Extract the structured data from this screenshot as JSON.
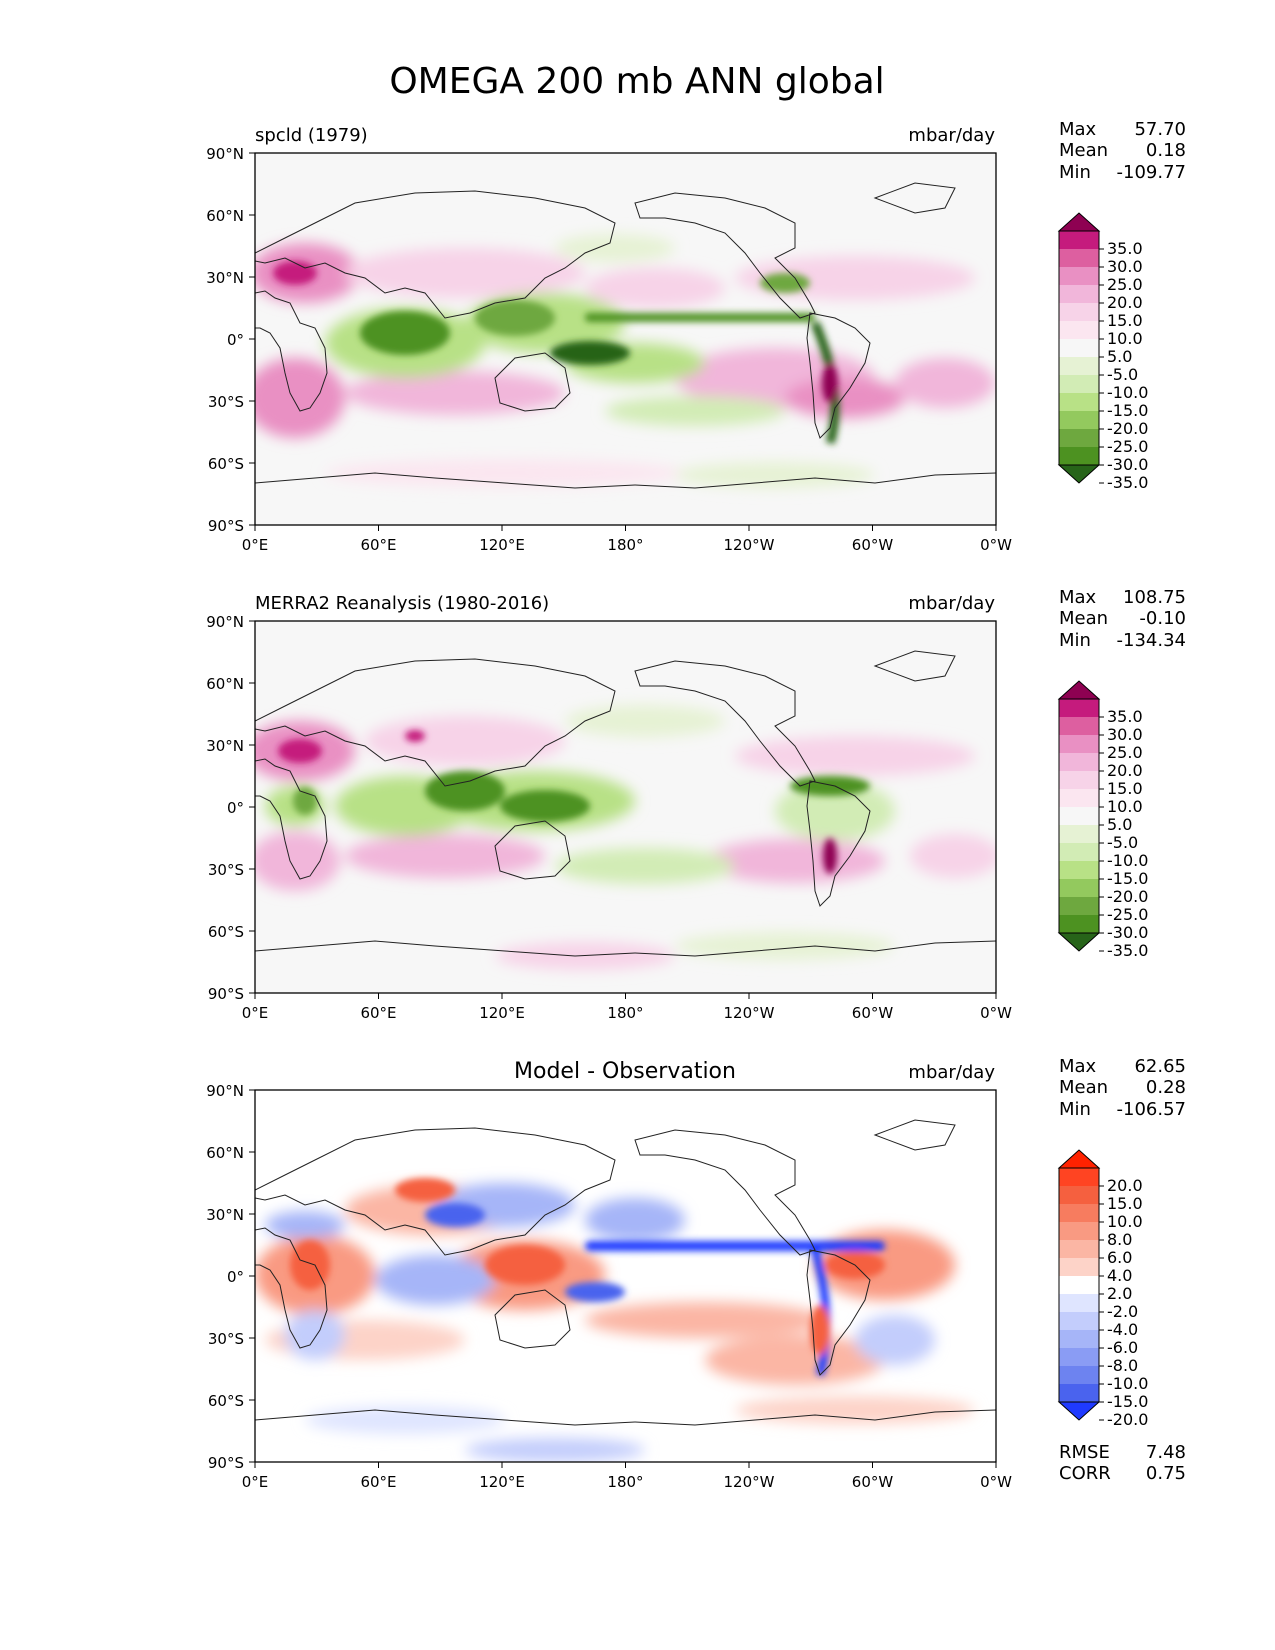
{
  "figure": {
    "title": "OMEGA 200 mb ANN global"
  },
  "chart_data": [
    {
      "type": "heatmap",
      "title": "spcld (1979)",
      "units": "mbar/day",
      "xticks": [
        "0°E",
        "60°E",
        "120°E",
        "180°",
        "120°W",
        "60°W",
        "0°W"
      ],
      "yticks": [
        "90°N",
        "60°N",
        "30°N",
        "0°",
        "30°S",
        "60°S",
        "90°S"
      ],
      "stats": {
        "max_label": "Max",
        "max": "57.70",
        "mean_label": "Mean",
        "mean": "0.18",
        "min_label": "Min",
        "min": "-109.77"
      },
      "colorbar": {
        "labels": [
          "35.0",
          "30.0",
          "25.0",
          "20.0",
          "15.0",
          "10.0",
          "5.0",
          "-5.0",
          "-10.0",
          "-15.0",
          "-20.0",
          "-25.0",
          "-30.0",
          "-35.0"
        ],
        "colors": [
          "#8e0152",
          "#c51b7d",
          "#dd5fa0",
          "#e990c3",
          "#f1b6da",
          "#f7d3e8",
          "#fbe6f0",
          "#f7f7f7",
          "#e6f2d4",
          "#d2ecb5",
          "#b8e186",
          "#93c95e",
          "#6ea83f",
          "#4d9221",
          "#276419"
        ]
      }
    },
    {
      "type": "heatmap",
      "title": "MERRA2 Reanalysis (1980-2016)",
      "units": "mbar/day",
      "xticks": [
        "0°E",
        "60°E",
        "120°E",
        "180°",
        "120°W",
        "60°W",
        "0°W"
      ],
      "yticks": [
        "90°N",
        "60°N",
        "30°N",
        "0°",
        "30°S",
        "60°S",
        "90°S"
      ],
      "stats": {
        "max_label": "Max",
        "max": "108.75",
        "mean_label": "Mean",
        "mean": "-0.10",
        "min_label": "Min",
        "min": "-134.34"
      },
      "colorbar": {
        "labels": [
          "35.0",
          "30.0",
          "25.0",
          "20.0",
          "15.0",
          "10.0",
          "5.0",
          "-5.0",
          "-10.0",
          "-15.0",
          "-20.0",
          "-25.0",
          "-30.0",
          "-35.0"
        ],
        "colors": [
          "#8e0152",
          "#c51b7d",
          "#dd5fa0",
          "#e990c3",
          "#f1b6da",
          "#f7d3e8",
          "#fbe6f0",
          "#f7f7f7",
          "#e6f2d4",
          "#d2ecb5",
          "#b8e186",
          "#93c95e",
          "#6ea83f",
          "#4d9221",
          "#276419"
        ]
      }
    },
    {
      "type": "heatmap",
      "title": "Model - Observation",
      "units": "mbar/day",
      "xticks": [
        "0°E",
        "60°E",
        "120°E",
        "180°",
        "120°W",
        "60°W",
        "0°W"
      ],
      "yticks": [
        "90°N",
        "60°N",
        "30°N",
        "0°",
        "30°S",
        "60°S",
        "90°S"
      ],
      "stats": {
        "max_label": "Max",
        "max": "62.65",
        "mean_label": "Mean",
        "mean": "0.28",
        "min_label": "Min",
        "min": "-106.57"
      },
      "metrics": {
        "rmse_label": "RMSE",
        "rmse": "7.48",
        "corr_label": "CORR",
        "corr": "0.75"
      },
      "colorbar": {
        "labels": [
          "20.0",
          "15.0",
          "10.0",
          "8.0",
          "6.0",
          "4.0",
          "2.0",
          "-2.0",
          "-4.0",
          "-6.0",
          "-8.0",
          "-10.0",
          "-15.0",
          "-20.0"
        ],
        "colors": [
          "#ff2200",
          "#ff4422",
          "#f5603f",
          "#f77c5f",
          "#f99a82",
          "#fbb6a4",
          "#fdd3c8",
          "#ffffff",
          "#dfe5ff",
          "#c3cdfc",
          "#a6b5f8",
          "#8a9cf4",
          "#6d83f0",
          "#4a63ee",
          "#1f3aff"
        ]
      }
    }
  ],
  "palette": {
    "ocean_bg": "#f7f7f7",
    "diff_bg": "#ffffff",
    "coast": "#222222",
    "pos_strong": "#8e0152",
    "pos_mid": "#dd5fa0",
    "pos_weak": "#f1b6da",
    "neg_weak": "#d2ecb5",
    "neg_mid": "#6ea83f",
    "neg_strong": "#276419",
    "d_pos": "#f5603f",
    "d_pos_weak": "#fbb6a4",
    "d_neg": "#4a63ee",
    "d_neg_weak": "#c3cdfc"
  }
}
